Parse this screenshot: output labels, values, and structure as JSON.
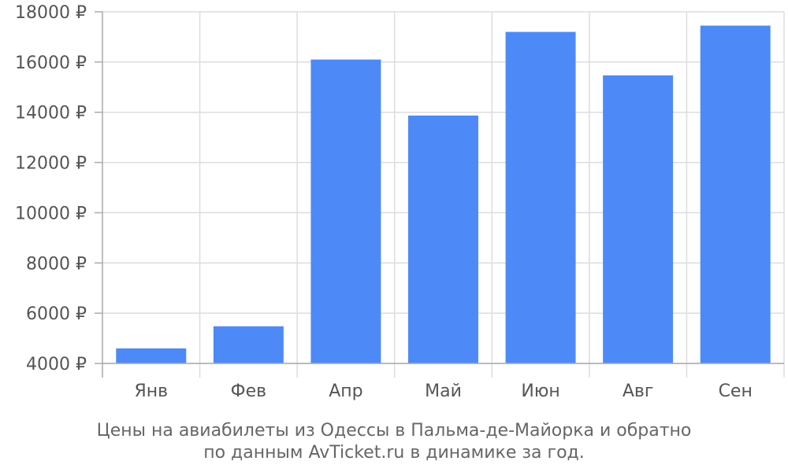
{
  "chart_data": {
    "type": "bar",
    "categories": [
      "Янв",
      "Фев",
      "Апр",
      "Май",
      "Июн",
      "Авг",
      "Сен"
    ],
    "values": [
      4600,
      5480,
      16100,
      13870,
      17200,
      15470,
      17450
    ],
    "y_ticks": [
      "4000 ₽",
      "6000 ₽",
      "8000 ₽",
      "10000 ₽",
      "12000 ₽",
      "14000 ₽",
      "16000 ₽",
      "18000 ₽"
    ],
    "y_tick_values": [
      4000,
      6000,
      8000,
      10000,
      12000,
      14000,
      16000,
      18000
    ],
    "ylim": [
      4000,
      18000
    ],
    "grid": true,
    "colors": {
      "bar": "#4d8af8",
      "grid": "#dddddd",
      "axis": "#aaaaaa"
    }
  },
  "caption": {
    "line1": "Цены на авиабилеты из Одессы в Пальма-де-Майорка и обратно",
    "line2": "по данным AvTicket.ru в динамике за год."
  }
}
